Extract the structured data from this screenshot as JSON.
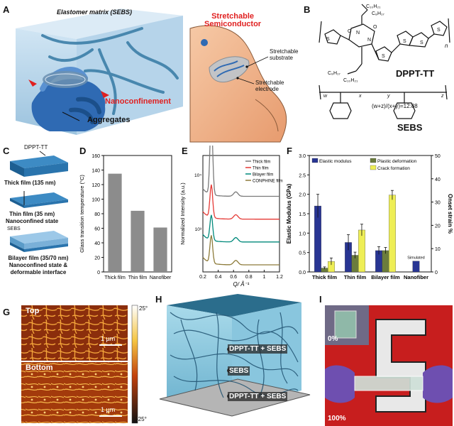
{
  "panel_letters": {
    "A": "A",
    "B": "B",
    "C": "C",
    "D": "D",
    "E": "E",
    "F": "F",
    "G": "G",
    "H": "H",
    "I": "I"
  },
  "panelA": {
    "elastomer_label": "Elastomer matrix (SEBS)",
    "nanoconfinement": "Nanoconfinement",
    "aggregates": "Aggregates",
    "stretchable_semiconductor_l1": "Stretchable",
    "stretchable_semiconductor_l2": "Semiconductor",
    "stretchable_substrate_l1": "Stretchable",
    "stretchable_substrate_l2": "substrate",
    "stretchable_electrode_l1": "Stretchable",
    "stretchable_electrode_l2": "electrode"
  },
  "panelB": {
    "sub1": "C₁₀H₂₁",
    "sub2": "C₈H₁₇",
    "sub3": "C₈H₁₇",
    "sub4": "C₁₀H₂₁",
    "n_label": "n",
    "dppt_name": "DPPT-TT",
    "ratio": "(w+z)/(x+y)=12:88",
    "sebs_name": "SEBS",
    "w": "w",
    "x": "x",
    "y": "y",
    "z": "z"
  },
  "panelC": {
    "dppt_tag": "DPPT-TT",
    "thick": "Thick film (135 nm)",
    "thin_l1": "Thin film (35 nm)",
    "thin_l2": "Nanoconfined state",
    "sebs_tag": "SEBS",
    "bilayer_l1": "Bilayer film (35/70 nm)",
    "bilayer_l2": "Nanoconfined state &",
    "bilayer_l3": "deformable interface"
  },
  "chart_data": [
    {
      "id": "D",
      "type": "bar",
      "ylabel": "Glass transition temperature (°C)",
      "categories": [
        "Thick film",
        "Thin film",
        "Nanofiber"
      ],
      "values": [
        135,
        84,
        61
      ],
      "ylim": [
        0,
        160
      ],
      "yticks": [
        0,
        20,
        40,
        60,
        80,
        100,
        120,
        140,
        160
      ],
      "color": "#8c8c8c"
    },
    {
      "id": "E",
      "type": "line",
      "ylabel": "Normalized Intensity (a.u.)",
      "xlabel": "Q/ Å⁻¹",
      "xlim": [
        0.2,
        1.2
      ],
      "xticks": [
        0.2,
        0.4,
        0.6,
        0.8,
        1.0,
        1.2
      ],
      "ytick_labels": [
        "10³",
        "10⁴"
      ],
      "legend_position": "top-right",
      "series": [
        {
          "name": "Thick film",
          "color": "#7a7a7a",
          "offset": 3,
          "peak_height": 6.2
        },
        {
          "name": "Thin film",
          "color": "#e53935",
          "offset": 2,
          "peak_height": 2.6
        },
        {
          "name": "Bilayer film",
          "color": "#00897b",
          "offset": 1,
          "peak_height": 2.0
        },
        {
          "name": "CONPHINE film",
          "color": "#8d7b3a",
          "offset": 0,
          "peak_height": 2.2
        }
      ]
    },
    {
      "id": "F",
      "type": "bar",
      "ylabel": "Elastic Modulus (GPa)",
      "ylabel_right": "Onset strain %",
      "categories": [
        "Thick film",
        "Thin film",
        "Bilayer film",
        "Nanofiber"
      ],
      "ylim": [
        0,
        3.0
      ],
      "ylim_right": [
        0,
        50
      ],
      "yticks": [
        0.0,
        0.5,
        1.0,
        1.5,
        2.0,
        2.5,
        3.0
      ],
      "yticks_right": [
        0,
        10,
        20,
        30,
        40,
        50
      ],
      "annotation": "Simulated",
      "series": [
        {
          "name": "Elastic modulus",
          "axis": "left",
          "color": "#283593",
          "values": [
            1.7,
            0.76,
            0.55,
            0.28
          ],
          "errors": [
            0.3,
            0.2,
            0.1,
            null
          ]
        },
        {
          "name": "Plastic deformation",
          "axis": "left",
          "color": "#6b7c3c",
          "values": [
            0.1,
            0.43,
            0.55,
            null
          ],
          "errors": [
            0.03,
            0.08,
            0.08,
            null
          ]
        },
        {
          "name": "Crack formation",
          "axis": "right",
          "color": "#eeee55",
          "values": [
            4.5,
            18,
            33,
            null
          ],
          "errors": [
            1.5,
            2.5,
            2,
            null
          ]
        }
      ]
    }
  ],
  "panelG": {
    "top": "Top",
    "bottom": "Bottom",
    "scale": "1 µm",
    "cbar_max": "25°",
    "cbar_min": "-25°"
  },
  "panelH": {
    "layer_top": "DPPT-TT + SEBS",
    "layer_mid": "SEBS",
    "layer_bot": "DPPT-TT + SEBS"
  },
  "panelI": {
    "strain0": "0%",
    "strain100": "100%"
  }
}
